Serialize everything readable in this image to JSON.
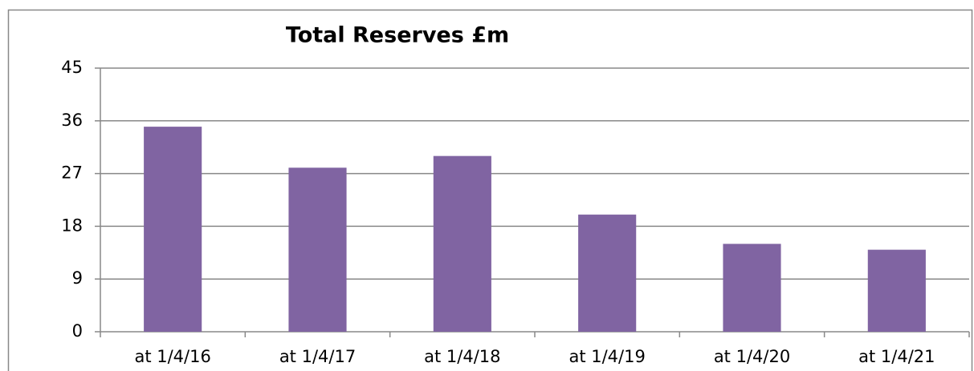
{
  "chart_data": {
    "type": "bar",
    "title": "Total Reserves £m",
    "categories": [
      "at 1/4/16",
      "at 1/4/17",
      "at 1/4/18",
      "at 1/4/19",
      "at 1/4/20",
      "at 1/4/21"
    ],
    "values": [
      35,
      28,
      30,
      20,
      15,
      14
    ],
    "color": "#8064a2",
    "ylim": [
      0,
      45
    ],
    "yticks": [
      0,
      9,
      18,
      27,
      36,
      45
    ],
    "grid": true
  }
}
